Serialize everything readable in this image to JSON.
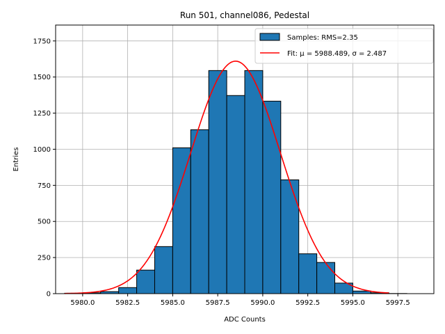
{
  "chart_data": {
    "type": "bar",
    "title": "Run 501, channel086, Pedestal",
    "xlabel": "ADC Counts",
    "ylabel": "Entries",
    "xlim": [
      5978.5,
      5999.5
    ],
    "ylim": [
      0,
      1860
    ],
    "xticks": [
      5980.0,
      5982.5,
      5985.0,
      5987.5,
      5990.0,
      5992.5,
      5995.0,
      5997.5
    ],
    "xtick_labels": [
      "5980.0",
      "5982.5",
      "5985.0",
      "5987.5",
      "5990.0",
      "5992.5",
      "5995.0",
      "5997.5"
    ],
    "yticks": [
      0,
      250,
      500,
      750,
      1000,
      1250,
      1500,
      1750
    ],
    "ytick_labels": [
      "0",
      "250",
      "500",
      "750",
      "1000",
      "1250",
      "1500",
      "1750"
    ],
    "grid": true,
    "legend_position": "top-right",
    "histogram": {
      "name": "Samples: RMS=2.35",
      "color": "#1f77b4",
      "edge_color": "#000000",
      "bin_edges": [
        5979,
        5980,
        5981,
        5982,
        5983,
        5984,
        5985,
        5986,
        5987,
        5988,
        5989,
        5990,
        5991,
        5992,
        5993,
        5994,
        5995,
        5996,
        5997,
        5998,
        5999
      ],
      "counts": [
        3,
        6,
        14,
        42,
        163,
        326,
        1010,
        1135,
        1545,
        1372,
        1545,
        1333,
        788,
        276,
        216,
        73,
        18,
        6,
        1,
        0
      ]
    },
    "fit": {
      "name": "Fit: μ = 5988.489, σ = 2.487",
      "color": "#ff0000",
      "mu": 5988.489,
      "sigma": 2.487,
      "peak": 1610,
      "x_range": [
        5979,
        5997
      ]
    }
  }
}
